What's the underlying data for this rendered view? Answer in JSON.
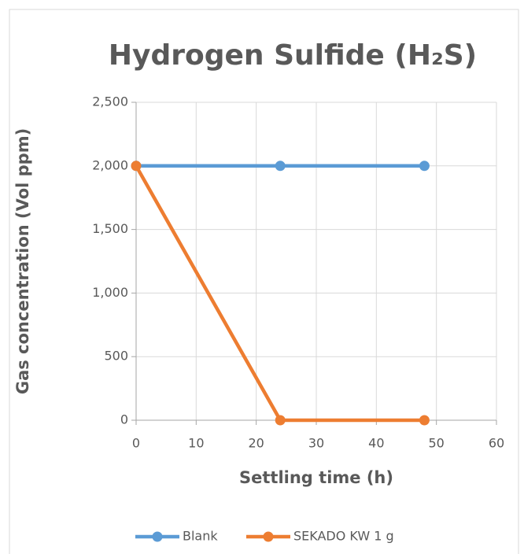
{
  "chart_data": {
    "type": "line",
    "title": "Hydrogen Sulfide (H₂S)",
    "x_label": "Settling time (h)",
    "y_label": "Gas concentration (Vol ppm)",
    "x": [
      0,
      24,
      48
    ],
    "series": [
      {
        "name": "Blank",
        "color": "#5b9bd5",
        "values": [
          2000,
          2000,
          2000
        ]
      },
      {
        "name": "SEKADO KW 1 g",
        "color": "#ed7d31",
        "values": [
          2000,
          0,
          0
        ]
      }
    ],
    "xlim": [
      0,
      60
    ],
    "xticks": [
      0,
      10,
      20,
      30,
      40,
      50,
      60
    ],
    "ylim": [
      0,
      2500
    ],
    "yticks": [
      0,
      500,
      {
        "value": 1000,
        "label": "1,000"
      },
      {
        "value": 1500,
        "label": "1,500"
      },
      {
        "value": 2000,
        "label": "2,000"
      },
      {
        "value": 2500,
        "label": "2,500"
      }
    ],
    "grid": true,
    "legend": "bottom"
  }
}
